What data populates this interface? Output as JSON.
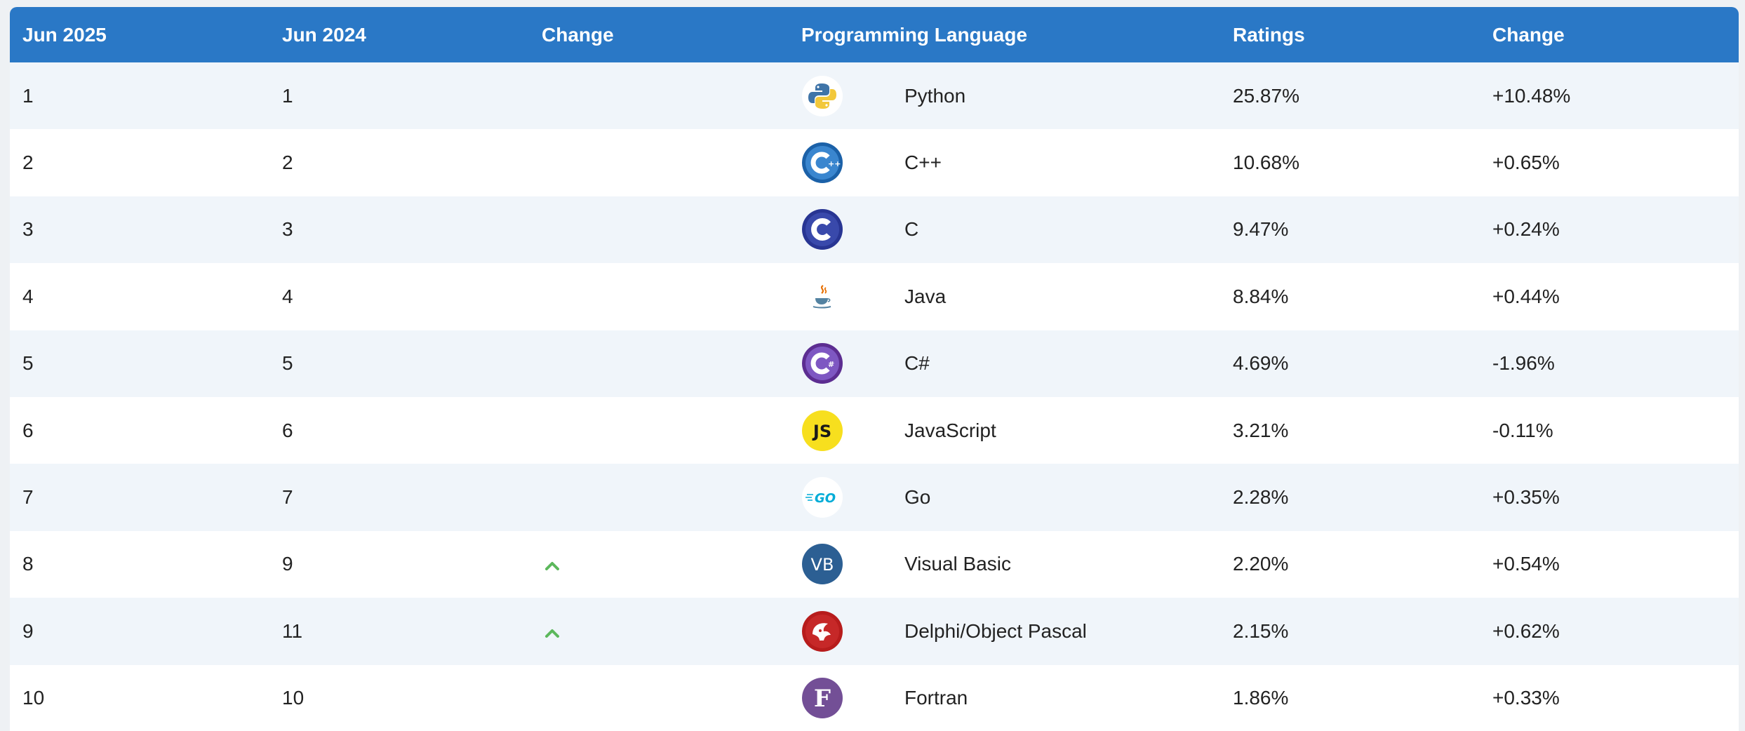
{
  "header": {
    "col1": "Jun 2025",
    "col2": "Jun 2024",
    "col3": "Change",
    "col4": "Programming Language",
    "col5": "Ratings",
    "col6": "Change"
  },
  "rows": [
    {
      "rank_2025": "1",
      "rank_2024": "1",
      "trend": "",
      "icon": "python-icon",
      "language": "Python",
      "rating": "25.87%",
      "change": "+10.48%"
    },
    {
      "rank_2025": "2",
      "rank_2024": "2",
      "trend": "",
      "icon": "cplusplus-icon",
      "language": "C++",
      "rating": "10.68%",
      "change": "+0.65%"
    },
    {
      "rank_2025": "3",
      "rank_2024": "3",
      "trend": "",
      "icon": "c-icon",
      "language": "C",
      "rating": "9.47%",
      "change": "+0.24%"
    },
    {
      "rank_2025": "4",
      "rank_2024": "4",
      "trend": "",
      "icon": "java-icon",
      "language": "Java",
      "rating": "8.84%",
      "change": "+0.44%"
    },
    {
      "rank_2025": "5",
      "rank_2024": "5",
      "trend": "",
      "icon": "csharp-icon",
      "language": "C#",
      "rating": "4.69%",
      "change": "-1.96%"
    },
    {
      "rank_2025": "6",
      "rank_2024": "6",
      "trend": "",
      "icon": "javascript-icon",
      "language": "JavaScript",
      "rating": "3.21%",
      "change": "-0.11%"
    },
    {
      "rank_2025": "7",
      "rank_2024": "7",
      "trend": "",
      "icon": "go-icon",
      "language": "Go",
      "rating": "2.28%",
      "change": "+0.35%"
    },
    {
      "rank_2025": "8",
      "rank_2024": "9",
      "trend": "up",
      "icon": "visual-basic-icon",
      "language": "Visual Basic",
      "rating": "2.20%",
      "change": "+0.54%"
    },
    {
      "rank_2025": "9",
      "rank_2024": "11",
      "trend": "up",
      "icon": "delphi-icon",
      "language": "Delphi/Object Pascal",
      "rating": "2.15%",
      "change": "+0.62%"
    },
    {
      "rank_2025": "10",
      "rank_2024": "10",
      "trend": "",
      "icon": "fortran-icon",
      "language": "Fortran",
      "rating": "1.86%",
      "change": "+0.33%"
    }
  ],
  "colors": {
    "header_bg": "#2a78c6",
    "row_alt": "#f0f5fa",
    "trend_up": "#5cb85c"
  }
}
